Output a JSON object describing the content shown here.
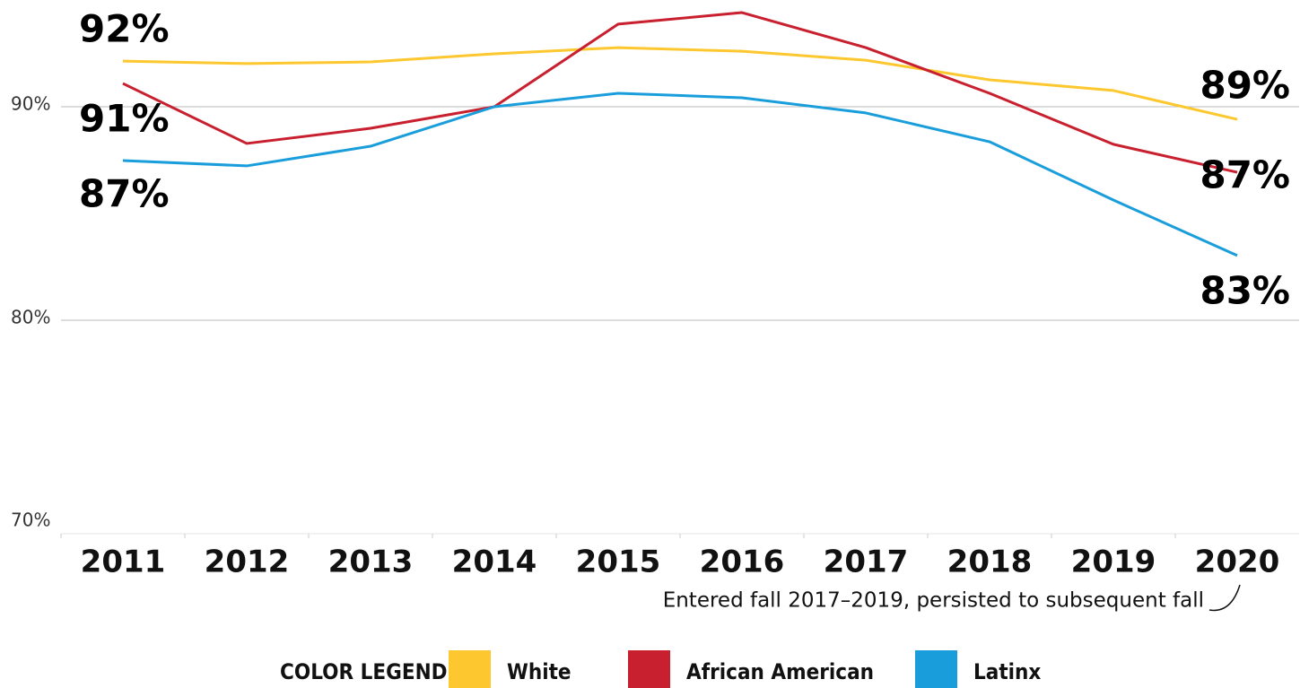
{
  "chart_data": {
    "type": "line",
    "categories": [
      "2011",
      "2012",
      "2013",
      "2014",
      "2015",
      "2016",
      "2017",
      "2018",
      "2019",
      "2020"
    ],
    "series": [
      {
        "name": "White",
        "color": "#fdc82f",
        "values": [
          92.14,
          92.02,
          92.1,
          92.48,
          92.77,
          92.6,
          92.18,
          91.26,
          90.76,
          89.41
        ],
        "value_labels": [
          "92%",
          null,
          null,
          null,
          null,
          null,
          null,
          null,
          null,
          "89%"
        ]
      },
      {
        "name": "African American",
        "color": "#c8202f",
        "values": [
          91.09,
          88.28,
          88.99,
          90.0,
          93.87,
          94.41,
          92.77,
          90.63,
          88.24,
          86.93
        ],
        "value_labels": [
          "91%",
          null,
          null,
          null,
          null,
          null,
          null,
          null,
          null,
          "87%"
        ]
      },
      {
        "name": "Latinx",
        "color": "#1a9edb",
        "values": [
          87.48,
          87.23,
          88.15,
          90.0,
          90.63,
          90.42,
          89.71,
          88.36,
          85.63,
          83.03
        ],
        "value_labels": [
          "87%",
          null,
          null,
          null,
          null,
          null,
          null,
          null,
          null,
          "83%"
        ]
      }
    ],
    "ylim": [
      70,
      95
    ],
    "yticks": [
      {
        "value": 70,
        "label": "70%"
      },
      {
        "value": 80,
        "label": "80%"
      },
      {
        "value": 90,
        "label": "90%"
      }
    ],
    "grid": true,
    "annotation": "Entered fall 2017–2019, persisted to subsequent fall",
    "legend_title": "COLOR LEGEND",
    "legend": "bottom"
  }
}
